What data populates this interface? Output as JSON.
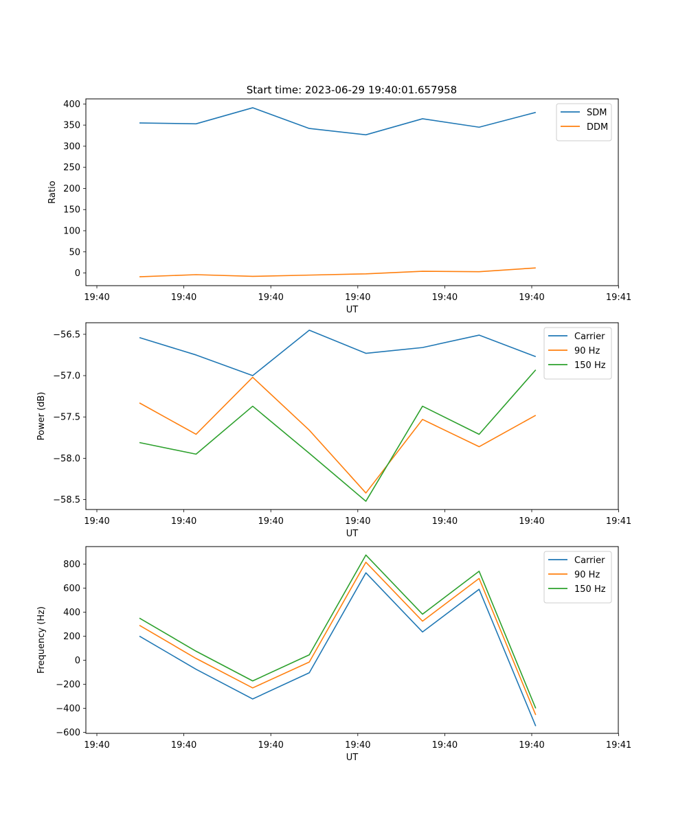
{
  "figure": {
    "title": "Start time: 2023-06-29 19:40:01.657958"
  },
  "chart_data": [
    {
      "type": "line",
      "xlabel": "UT",
      "ylabel": "Ratio",
      "xtick_labels": [
        "19:40",
        "19:40",
        "19:40",
        "19:40",
        "19:40",
        "19:40",
        "19:41"
      ],
      "yticks": [
        0,
        50,
        100,
        150,
        200,
        250,
        300,
        350,
        400
      ],
      "ylim": [
        -30,
        412
      ],
      "legend": "top-right",
      "series": [
        {
          "name": "SDM",
          "color": "#1f77b4",
          "values": [
            355,
            353,
            391,
            342,
            327,
            365,
            345,
            380
          ]
        },
        {
          "name": "DDM",
          "color": "#ff7f0e",
          "values": [
            -9,
            -4,
            -8,
            -5,
            -2,
            4,
            3,
            12
          ]
        }
      ]
    },
    {
      "type": "line",
      "xlabel": "UT",
      "ylabel": "Power (dB)",
      "xtick_labels": [
        "19:40",
        "19:40",
        "19:40",
        "19:40",
        "19:40",
        "19:40",
        "19:41"
      ],
      "yticks": [
        -58.5,
        -58.0,
        -57.5,
        -57.0,
        -56.5
      ],
      "ytick_labels": [
        "−58.5",
        "−58.0",
        "−57.5",
        "−57.0",
        "−56.5"
      ],
      "ylim": [
        -58.62,
        -56.36
      ],
      "legend": "top-right",
      "series": [
        {
          "name": "Carrier",
          "color": "#1f77b4",
          "values": [
            -56.54,
            -56.75,
            -57.0,
            -56.45,
            -56.73,
            -56.66,
            -56.51,
            -56.77
          ]
        },
        {
          "name": "90 Hz",
          "color": "#ff7f0e",
          "values": [
            -57.33,
            -57.71,
            -57.02,
            -57.66,
            -58.42,
            -57.53,
            -57.86,
            -57.48
          ]
        },
        {
          "name": "150 Hz",
          "color": "#2ca02c",
          "values": [
            -57.81,
            -57.95,
            -57.37,
            -57.94,
            -58.52,
            -57.37,
            -57.71,
            -56.93
          ]
        }
      ]
    },
    {
      "type": "line",
      "xlabel": "UT",
      "ylabel": "Frequency (Hz)",
      "xtick_labels": [
        "19:40",
        "19:40",
        "19:40",
        "19:40",
        "19:40",
        "19:40",
        "19:41"
      ],
      "yticks": [
        -600,
        -400,
        -200,
        0,
        200,
        400,
        600,
        800
      ],
      "ytick_labels": [
        "−600",
        "−400",
        "−200",
        "0",
        "200",
        "400",
        "600",
        "800"
      ],
      "ylim": [
        -608,
        945
      ],
      "legend": "top-right",
      "series": [
        {
          "name": "Carrier",
          "color": "#1f77b4",
          "values": [
            200,
            -75,
            -322,
            -104,
            727,
            235,
            590,
            -548
          ]
        },
        {
          "name": "90 Hz",
          "color": "#ff7f0e",
          "values": [
            290,
            15,
            -230,
            -15,
            815,
            325,
            680,
            -455
          ]
        },
        {
          "name": "150 Hz",
          "color": "#2ca02c",
          "values": [
            350,
            75,
            -172,
            45,
            875,
            383,
            740,
            -400
          ]
        }
      ]
    }
  ]
}
